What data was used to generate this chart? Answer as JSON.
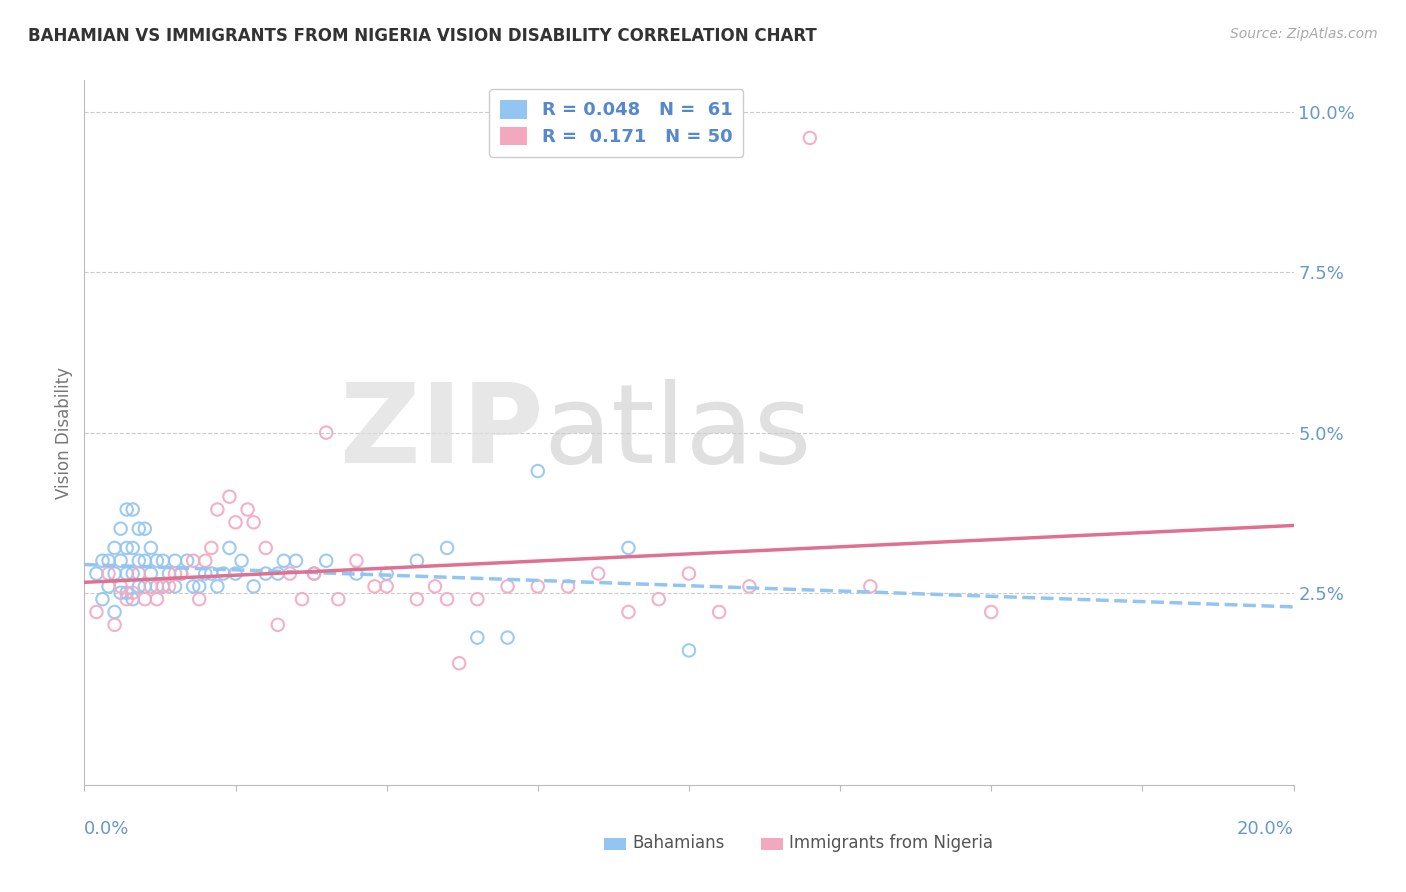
{
  "title": "BAHAMIAN VS IMMIGRANTS FROM NIGERIA VISION DISABILITY CORRELATION CHART",
  "source": "Source: ZipAtlas.com",
  "ylabel": "Vision Disability",
  "xlim": [
    0.0,
    0.2
  ],
  "ylim": [
    -0.005,
    0.105
  ],
  "yticks": [
    0.025,
    0.05,
    0.075,
    0.1
  ],
  "ytick_labels": [
    "2.5%",
    "5.0%",
    "7.5%",
    "10.0%"
  ],
  "blue_color": "#92C5F2",
  "pink_color": "#F4A8C0",
  "pink_line_color": "#E07090",
  "blue_line_color": "#92C5F2",
  "axis_color": "#6699CC",
  "title_color": "#333333",
  "grid_color": "#CCCCCC",
  "background_color": "#FFFFFF",
  "legend_text_color": "#5588CC",
  "blue_scatter_x": [
    0.002,
    0.003,
    0.003,
    0.004,
    0.004,
    0.005,
    0.005,
    0.005,
    0.006,
    0.006,
    0.006,
    0.007,
    0.007,
    0.007,
    0.007,
    0.008,
    0.008,
    0.008,
    0.008,
    0.009,
    0.009,
    0.009,
    0.01,
    0.01,
    0.01,
    0.011,
    0.011,
    0.012,
    0.012,
    0.013,
    0.013,
    0.014,
    0.015,
    0.015,
    0.016,
    0.017,
    0.018,
    0.019,
    0.02,
    0.021,
    0.022,
    0.023,
    0.024,
    0.025,
    0.026,
    0.028,
    0.03,
    0.032,
    0.033,
    0.035,
    0.038,
    0.04,
    0.045,
    0.05,
    0.055,
    0.06,
    0.065,
    0.07,
    0.075,
    0.09,
    0.1
  ],
  "blue_scatter_y": [
    0.028,
    0.024,
    0.03,
    0.026,
    0.03,
    0.022,
    0.028,
    0.032,
    0.025,
    0.03,
    0.035,
    0.025,
    0.028,
    0.032,
    0.038,
    0.024,
    0.028,
    0.032,
    0.038,
    0.026,
    0.03,
    0.035,
    0.026,
    0.03,
    0.035,
    0.028,
    0.032,
    0.026,
    0.03,
    0.026,
    0.03,
    0.028,
    0.026,
    0.03,
    0.028,
    0.03,
    0.026,
    0.026,
    0.028,
    0.028,
    0.026,
    0.028,
    0.032,
    0.028,
    0.03,
    0.026,
    0.028,
    0.028,
    0.03,
    0.03,
    0.028,
    0.03,
    0.028,
    0.028,
    0.03,
    0.032,
    0.018,
    0.018,
    0.044,
    0.032,
    0.016
  ],
  "pink_scatter_x": [
    0.002,
    0.004,
    0.005,
    0.006,
    0.007,
    0.008,
    0.009,
    0.01,
    0.011,
    0.012,
    0.013,
    0.014,
    0.015,
    0.016,
    0.018,
    0.019,
    0.02,
    0.021,
    0.022,
    0.024,
    0.025,
    0.027,
    0.028,
    0.03,
    0.032,
    0.034,
    0.036,
    0.038,
    0.04,
    0.042,
    0.045,
    0.048,
    0.05,
    0.055,
    0.058,
    0.06,
    0.062,
    0.065,
    0.07,
    0.075,
    0.08,
    0.085,
    0.09,
    0.095,
    0.1,
    0.105,
    0.11,
    0.12,
    0.13,
    0.15
  ],
  "pink_scatter_y": [
    0.022,
    0.028,
    0.02,
    0.026,
    0.024,
    0.025,
    0.028,
    0.024,
    0.026,
    0.024,
    0.026,
    0.026,
    0.028,
    0.028,
    0.03,
    0.024,
    0.03,
    0.032,
    0.038,
    0.04,
    0.036,
    0.038,
    0.036,
    0.032,
    0.02,
    0.028,
    0.024,
    0.028,
    0.05,
    0.024,
    0.03,
    0.026,
    0.026,
    0.024,
    0.026,
    0.024,
    0.014,
    0.024,
    0.026,
    0.026,
    0.026,
    0.028,
    0.022,
    0.024,
    0.028,
    0.022,
    0.026,
    0.096,
    0.026,
    0.022
  ]
}
